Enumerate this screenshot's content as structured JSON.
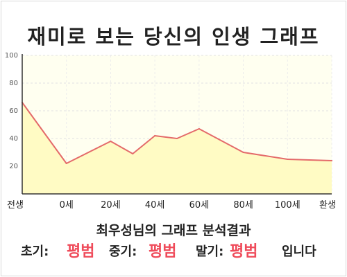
{
  "title": "재미로 보는 당신의 인생 그래프",
  "chart_data": {
    "type": "area",
    "x_labels": [
      "전생",
      "0세",
      "20세",
      "40세",
      "60세",
      "80세",
      "100세",
      "환생"
    ],
    "x_positions": [
      -20,
      0,
      20,
      40,
      60,
      80,
      100,
      120
    ],
    "xlim": [
      -20,
      120
    ],
    "ylim": [
      0,
      100
    ],
    "y_ticks": [
      20,
      40,
      60,
      80,
      100
    ],
    "grid": true,
    "points": [
      {
        "x": -20,
        "y": 66
      },
      {
        "x": 0,
        "y": 22
      },
      {
        "x": 20,
        "y": 38
      },
      {
        "x": 30,
        "y": 29
      },
      {
        "x": 40,
        "y": 42
      },
      {
        "x": 50,
        "y": 40
      },
      {
        "x": 60,
        "y": 47
      },
      {
        "x": 80,
        "y": 30
      },
      {
        "x": 100,
        "y": 25
      },
      {
        "x": 120,
        "y": 24
      }
    ],
    "line_color": "#e46a6a",
    "fill_color": "#fffbc4"
  },
  "caption": "최우성님의 그래프 분석결과",
  "result": {
    "early_label": "초기:",
    "early_value": "평범",
    "mid_label": "중기:",
    "mid_value": "평범",
    "late_label": "말기:",
    "late_value": "평범",
    "suffix": "입니다",
    "value_color": "#ef4b5a"
  }
}
